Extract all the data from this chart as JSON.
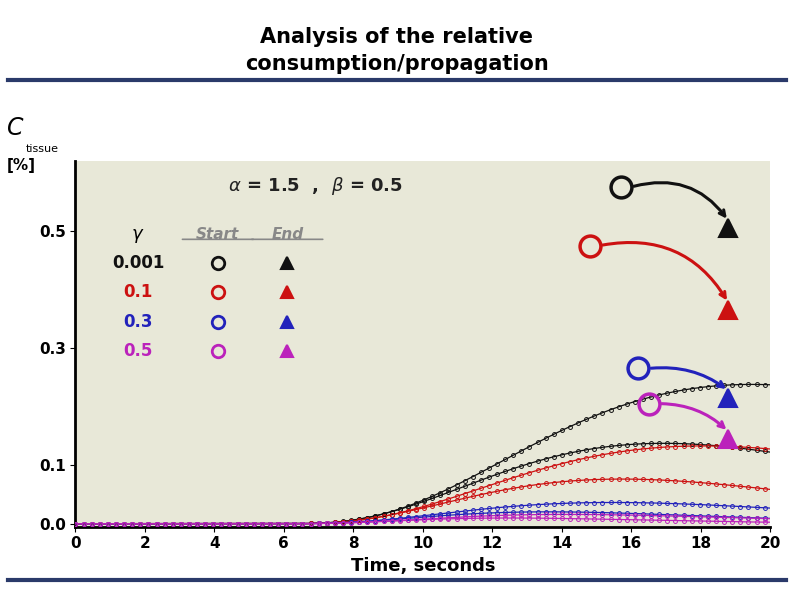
{
  "title_line1": "Analysis of the relative",
  "title_line2": "consumption/propagation",
  "xlabel": "Time, seconds",
  "equation": "α = 1.5  ,  β = 0.5",
  "gamma_label": "γ",
  "gammas": [
    "0.001",
    "0.1",
    "0.3",
    "0.5"
  ],
  "colors": [
    "#111111",
    "#cc1111",
    "#2222bb",
    "#bb22bb"
  ],
  "xlim": [
    0,
    20
  ],
  "ylim": [
    -0.005,
    0.62
  ],
  "yticks": [
    0.0,
    0.1,
    0.3,
    0.5
  ],
  "xticks": [
    0,
    2,
    4,
    6,
    8,
    10,
    12,
    14,
    16,
    18,
    20
  ],
  "curve_params": [
    {
      "t0": 6.0,
      "alpha": 3.5,
      "beta_s": 0.32,
      "amp_s": 0.00105,
      "beta_e": 0.26,
      "amp_e": 0.00088
    },
    {
      "t0": 6.0,
      "alpha": 3.5,
      "beta_s": 0.36,
      "amp_s": 0.00088,
      "beta_e": 0.29,
      "amp_e": 0.00072
    },
    {
      "t0": 6.0,
      "alpha": 3.5,
      "beta_s": 0.46,
      "amp_s": 0.00055,
      "beta_e": 0.37,
      "amp_e": 0.00046
    },
    {
      "t0": 6.0,
      "alpha": 3.5,
      "beta_s": 0.54,
      "amp_s": 0.00046,
      "beta_e": 0.43,
      "amp_e": 0.00034
    }
  ],
  "peak_circle_s": [
    15.7,
    14.8,
    16.2,
    16.5
  ],
  "peak_circle_v": [
    0.575,
    0.475,
    0.265,
    0.205
  ],
  "peak_tri_t": [
    18.8,
    18.8,
    18.8,
    18.8
  ],
  "peak_tri_v": [
    0.505,
    0.365,
    0.215,
    0.145
  ],
  "background_color": "#e8e8d8"
}
